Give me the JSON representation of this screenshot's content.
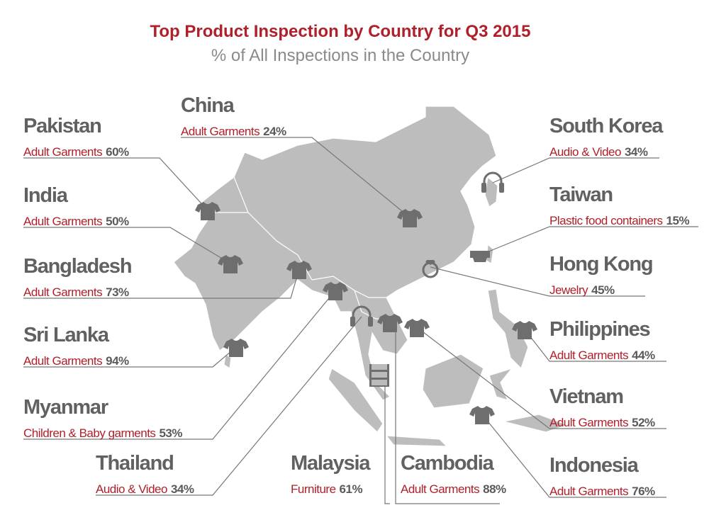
{
  "header": {
    "title": "Top Product Inspection by Country for Q3 2015",
    "subtitle": "% of All Inspections in the Country"
  },
  "countries": [
    {
      "name": "Pakistan",
      "category": "Adult Garments",
      "share": "60%"
    },
    {
      "name": "China",
      "category": "Adult Garments",
      "share": "24%"
    },
    {
      "name": "India",
      "category": "Adult Garments",
      "share": "50%"
    },
    {
      "name": "Bangladesh",
      "category": "Adult Garments",
      "share": "73%"
    },
    {
      "name": "Sri Lanka",
      "category": "Adult Garments",
      "share": "94%"
    },
    {
      "name": "Myanmar",
      "category": "Children & Baby garments",
      "share": "53%"
    },
    {
      "name": "Thailand",
      "category": "Audio & Video",
      "share": "34%"
    },
    {
      "name": "Malaysia",
      "category": "Furniture",
      "share": "61%"
    },
    {
      "name": "Cambodia",
      "category": "Adult Garments",
      "share": "88%"
    },
    {
      "name": "South Korea",
      "category": "Audio & Video",
      "share": "34%"
    },
    {
      "name": "Taiwan",
      "category": "Plastic food containers",
      "share": "15%"
    },
    {
      "name": "Hong Kong",
      "category": "Jewelry",
      "share": "45%"
    },
    {
      "name": "Philippines",
      "category": "Adult Garments",
      "share": "44%"
    },
    {
      "name": "Vietnam",
      "category": "Adult Garments",
      "share": "52%"
    },
    {
      "name": "Indonesia",
      "category": "Adult Garments",
      "share": "76%"
    }
  ]
}
